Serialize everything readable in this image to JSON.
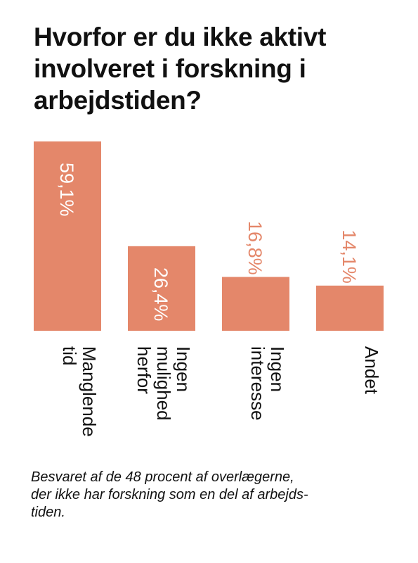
{
  "chart_data": {
    "type": "bar",
    "title_lines": [
      "Hvorfor er du ikke aktivt",
      "involveret i forskning i",
      "arbejdstiden?"
    ],
    "categories": [
      {
        "lines": [
          "Manglende",
          "tid"
        ]
      },
      {
        "lines": [
          "Ingen",
          "mulighed",
          "herfor"
        ]
      },
      {
        "lines": [
          "Ingen",
          "interesse"
        ]
      },
      {
        "lines": [
          "Andet"
        ]
      }
    ],
    "values": [
      59.1,
      26.4,
      16.8,
      14.1
    ],
    "value_labels": [
      "59,1%",
      "26,4%",
      "16,8%",
      "14,1%"
    ],
    "ylim": [
      0,
      59.1
    ],
    "grid": false,
    "legend": "none",
    "bar_color": "#e4876a",
    "label_color_inside": "#ffffff",
    "label_color_outside": "#e4876a",
    "category_label_color": "#111111"
  },
  "caption_lines": [
    "Besvaret af de 48 procent af overlægerne,",
    "der ikke har forskning som en del af arbejds-",
    "tiden."
  ]
}
